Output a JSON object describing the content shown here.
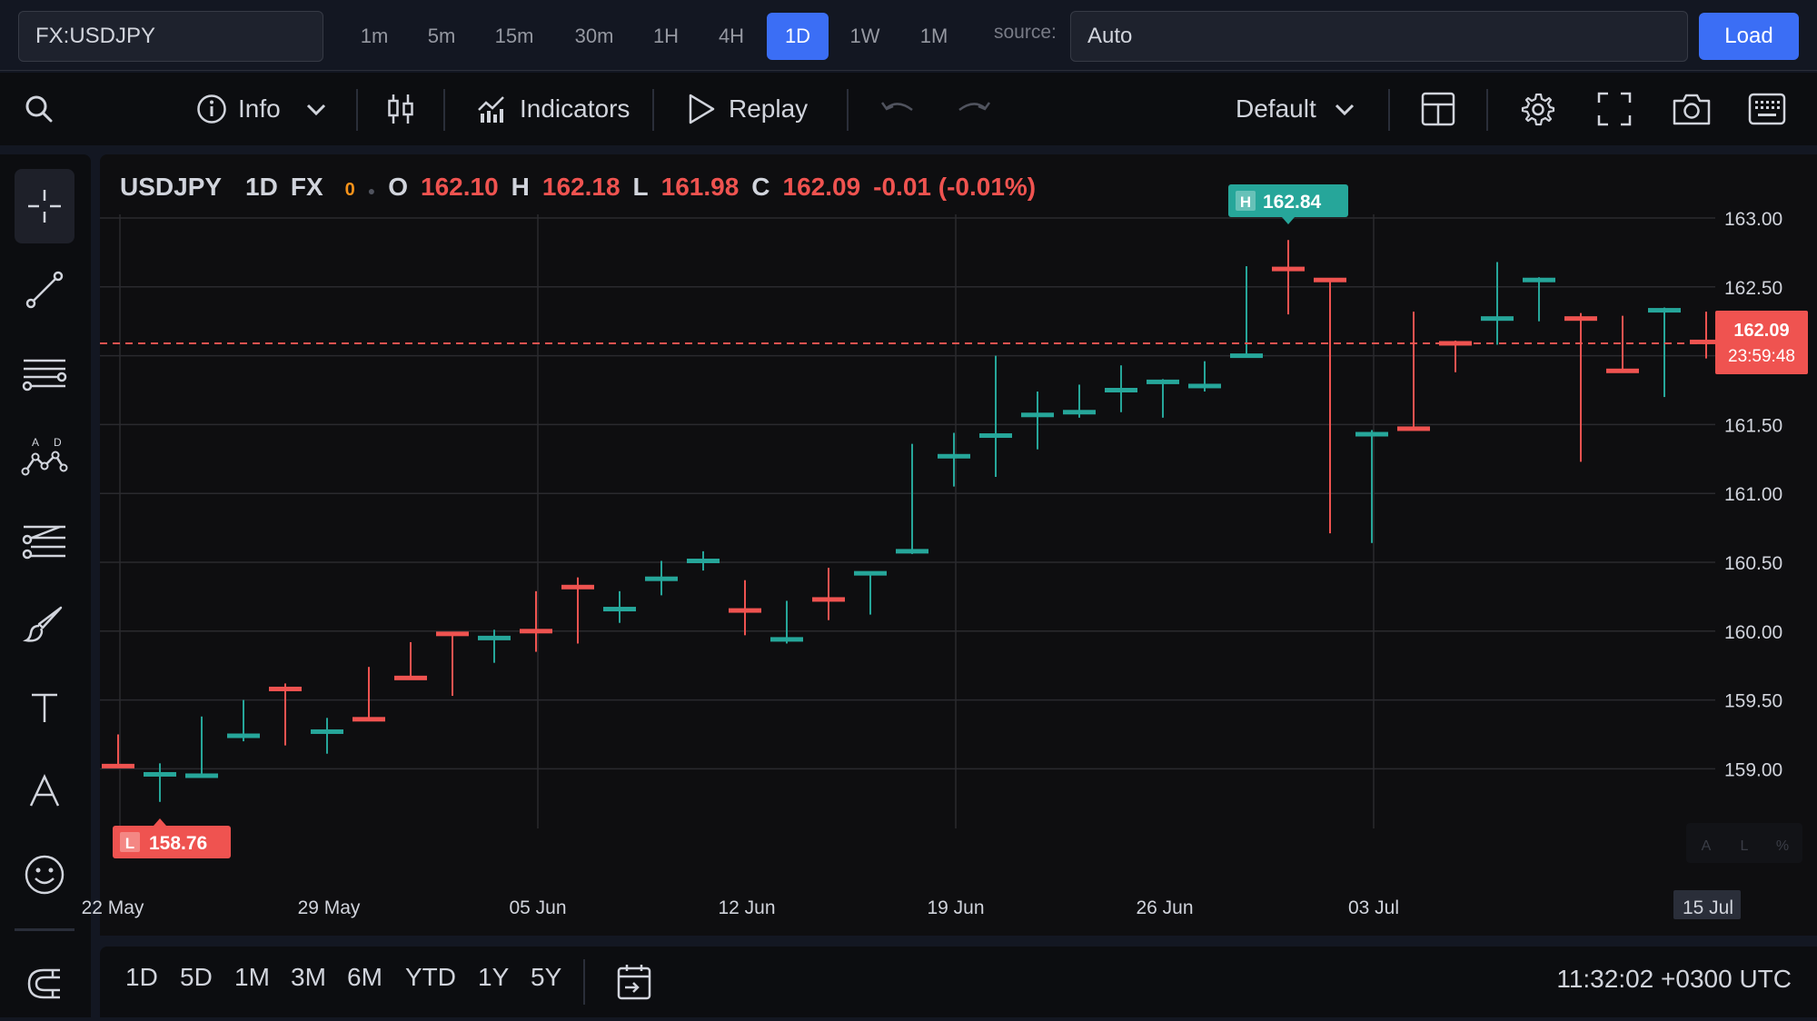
{
  "source_bar": {
    "symbol": "FX:USDJPY",
    "timeframes": [
      "1m",
      "5m",
      "15m",
      "30m",
      "1H",
      "4H",
      "1D",
      "1W",
      "1M"
    ],
    "active_timeframe": "1D",
    "source_label": "source:",
    "source_value": "Auto",
    "load_label": "Load"
  },
  "toolbar": {
    "info_label": "Info",
    "indicators_label": "Indicators",
    "replay_label": "Replay",
    "layout_label": "Default"
  },
  "legend": {
    "symbol": "USDJPY",
    "interval": "1D",
    "exchange": "FX",
    "status": "0",
    "o_label": "O",
    "o_value": "162.10",
    "h_label": "H",
    "h_value": "162.18",
    "l_label": "L",
    "l_value": "161.98",
    "c_label": "C",
    "c_value": "162.09",
    "change": "-0.01 (-0.01%)"
  },
  "markers": {
    "high_tag": "H",
    "high_value": "162.84",
    "low_tag": "L",
    "low_value": "158.76",
    "last_price": "162.09",
    "countdown": "23:59:48"
  },
  "scale_buttons": [
    "A",
    "L",
    "%"
  ],
  "bottom_bar": {
    "ranges": [
      "1D",
      "5D",
      "1M",
      "3M",
      "6M",
      "YTD",
      "1Y",
      "5Y"
    ],
    "clock": "11:32:02 +0300 UTC"
  },
  "colors": {
    "up": "#26a69a",
    "down": "#ef5350",
    "accent": "#3b6ef5",
    "background": "#0e0e10"
  },
  "chart_data": {
    "type": "ohlc",
    "symbol": "USDJPY",
    "interval": "1D",
    "ylim": [
      158.6,
      163.1
    ],
    "y_ticks": [
      "163.00",
      "162.50",
      "162.00",
      "161.50",
      "161.00",
      "160.50",
      "160.00",
      "159.50",
      "159.00"
    ],
    "x_ticks": [
      "22 May",
      "29 May",
      "05 Jun",
      "12 Jun",
      "19 Jun",
      "26 Jun",
      "03 Jul",
      "15 Jul"
    ],
    "highlighted_x_tick": "15 Jul",
    "last_price": 162.09,
    "ohlc": [
      {
        "o": 159.02,
        "h": 159.25,
        "l": 159.02,
        "c": 159.02
      },
      {
        "o": 158.96,
        "h": 159.04,
        "l": 158.76,
        "c": 158.96
      },
      {
        "o": 158.95,
        "h": 159.38,
        "l": 158.94,
        "c": 158.95
      },
      {
        "o": 159.24,
        "h": 159.5,
        "l": 159.2,
        "c": 159.24
      },
      {
        "o": 159.58,
        "h": 159.62,
        "l": 159.17,
        "c": 159.58
      },
      {
        "o": 159.27,
        "h": 159.37,
        "l": 159.11,
        "c": 159.27
      },
      {
        "o": 159.36,
        "h": 159.74,
        "l": 159.36,
        "c": 159.36
      },
      {
        "o": 159.66,
        "h": 159.92,
        "l": 159.66,
        "c": 159.66
      },
      {
        "o": 159.98,
        "h": 159.98,
        "l": 159.53,
        "c": 159.98
      },
      {
        "o": 159.95,
        "h": 160.01,
        "l": 159.77,
        "c": 159.95
      },
      {
        "o": 160.0,
        "h": 160.29,
        "l": 159.85,
        "c": 160.0
      },
      {
        "o": 160.32,
        "h": 160.39,
        "l": 159.91,
        "c": 160.32
      },
      {
        "o": 160.16,
        "h": 160.29,
        "l": 160.06,
        "c": 160.16
      },
      {
        "o": 160.38,
        "h": 160.51,
        "l": 160.26,
        "c": 160.38
      },
      {
        "o": 160.51,
        "h": 160.58,
        "l": 160.44,
        "c": 160.51
      },
      {
        "o": 160.15,
        "h": 160.37,
        "l": 159.97,
        "c": 160.15
      },
      {
        "o": 159.94,
        "h": 160.22,
        "l": 159.91,
        "c": 159.94
      },
      {
        "o": 160.23,
        "h": 160.46,
        "l": 160.08,
        "c": 160.23
      },
      {
        "o": 160.42,
        "h": 160.42,
        "l": 160.12,
        "c": 160.42
      },
      {
        "o": 160.58,
        "h": 161.36,
        "l": 160.56,
        "c": 160.58
      },
      {
        "o": 161.27,
        "h": 161.44,
        "l": 161.05,
        "c": 161.27
      },
      {
        "o": 161.42,
        "h": 162.0,
        "l": 161.12,
        "c": 161.42
      },
      {
        "o": 161.57,
        "h": 161.74,
        "l": 161.32,
        "c": 161.57
      },
      {
        "o": 161.59,
        "h": 161.79,
        "l": 161.55,
        "c": 161.59
      },
      {
        "o": 161.75,
        "h": 161.93,
        "l": 161.59,
        "c": 161.75
      },
      {
        "o": 161.81,
        "h": 161.83,
        "l": 161.55,
        "c": 161.81
      },
      {
        "o": 161.78,
        "h": 161.96,
        "l": 161.74,
        "c": 161.78
      },
      {
        "o": 162.0,
        "h": 162.65,
        "l": 162.0,
        "c": 162.0
      },
      {
        "o": 162.63,
        "h": 162.84,
        "l": 162.3,
        "c": 162.63
      },
      {
        "o": 162.55,
        "h": 162.55,
        "l": 160.71,
        "c": 162.55
      },
      {
        "o": 161.43,
        "h": 161.46,
        "l": 160.64,
        "c": 161.43
      },
      {
        "o": 161.47,
        "h": 162.32,
        "l": 161.47,
        "c": 161.47
      },
      {
        "o": 162.09,
        "h": 162.11,
        "l": 161.88,
        "c": 162.09
      },
      {
        "o": 162.27,
        "h": 162.68,
        "l": 162.08,
        "c": 162.27
      },
      {
        "o": 162.55,
        "h": 162.57,
        "l": 162.25,
        "c": 162.55
      },
      {
        "o": 162.27,
        "h": 162.31,
        "l": 161.23,
        "c": 162.27
      },
      {
        "o": 161.89,
        "h": 162.29,
        "l": 161.89,
        "c": 161.89
      },
      {
        "o": 162.33,
        "h": 162.35,
        "l": 161.7,
        "c": 162.33
      },
      {
        "o": 162.1,
        "h": 162.32,
        "l": 161.98,
        "c": 162.09
      }
    ]
  }
}
